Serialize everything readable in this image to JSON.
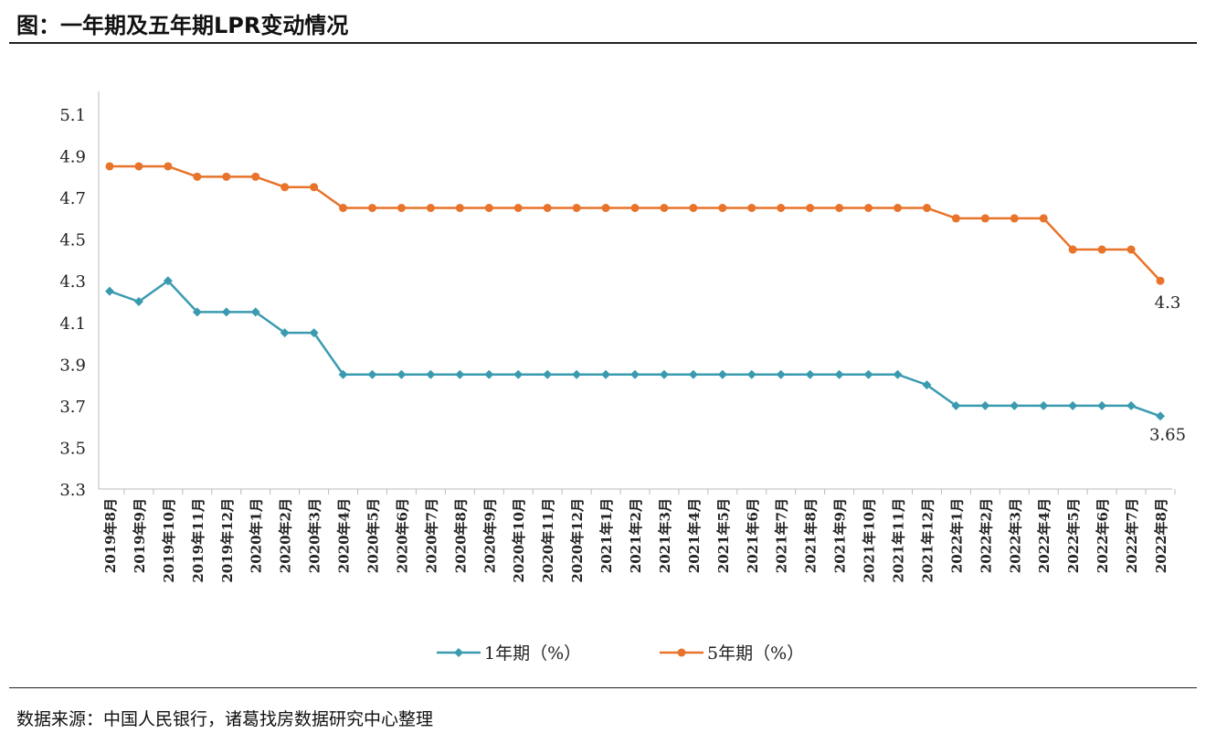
{
  "title": "图：一年期及五年期LPR变动情况",
  "source": "数据来源：中国人民银行，诸葛找房数据研究中心整理",
  "chart_data": {
    "type": "line",
    "title": "图：一年期及五年期LPR变动情况",
    "xlabel": "",
    "ylabel": "",
    "ylim": [
      3.3,
      5.1
    ],
    "yticks": [
      "5.1",
      "4.9",
      "4.7",
      "4.5",
      "4.3",
      "4.1",
      "3.9",
      "3.7",
      "3.5",
      "3.3"
    ],
    "grid": false,
    "legend": "bottom",
    "categories": [
      "2019年8月",
      "2019年9月",
      "2019年10月",
      "2019年11月",
      "2019年12月",
      "2020年1月",
      "2020年2月",
      "2020年3月",
      "2020年4月",
      "2020年5月",
      "2020年6月",
      "2020年7月",
      "2020年8月",
      "2020年9月",
      "2020年10月",
      "2020年11月",
      "2020年12月",
      "2021年1月",
      "2021年2月",
      "2021年3月",
      "2021年4月",
      "2021年5月",
      "2021年6月",
      "2021年7月",
      "2021年8月",
      "2021年9月",
      "2021年10月",
      "2021年11月",
      "2021年12月",
      "2022年1月",
      "2022年2月",
      "2022年3月",
      "2022年4月",
      "2022年5月",
      "2022年6月",
      "2022年7月",
      "2022年8月"
    ],
    "series": [
      {
        "name": "1年期（%）",
        "color": "#3a9bb0",
        "marker": "diamond",
        "values": [
          4.25,
          4.2,
          4.3,
          4.15,
          4.15,
          4.15,
          4.05,
          4.05,
          3.85,
          3.85,
          3.85,
          3.85,
          3.85,
          3.85,
          3.85,
          3.85,
          3.85,
          3.85,
          3.85,
          3.85,
          3.85,
          3.85,
          3.85,
          3.85,
          3.85,
          3.85,
          3.85,
          3.85,
          3.8,
          3.7,
          3.7,
          3.7,
          3.7,
          3.7,
          3.7,
          3.7,
          3.65
        ],
        "end_label": "3.65"
      },
      {
        "name": "5年期（%）",
        "color": "#e8732a",
        "marker": "circle",
        "values": [
          4.85,
          4.85,
          4.85,
          4.8,
          4.8,
          4.8,
          4.75,
          4.75,
          4.65,
          4.65,
          4.65,
          4.65,
          4.65,
          4.65,
          4.65,
          4.65,
          4.65,
          4.65,
          4.65,
          4.65,
          4.65,
          4.65,
          4.65,
          4.65,
          4.65,
          4.65,
          4.65,
          4.65,
          4.65,
          4.6,
          4.6,
          4.6,
          4.6,
          4.45,
          4.45,
          4.45,
          4.3
        ],
        "end_label": "4.3"
      }
    ]
  }
}
